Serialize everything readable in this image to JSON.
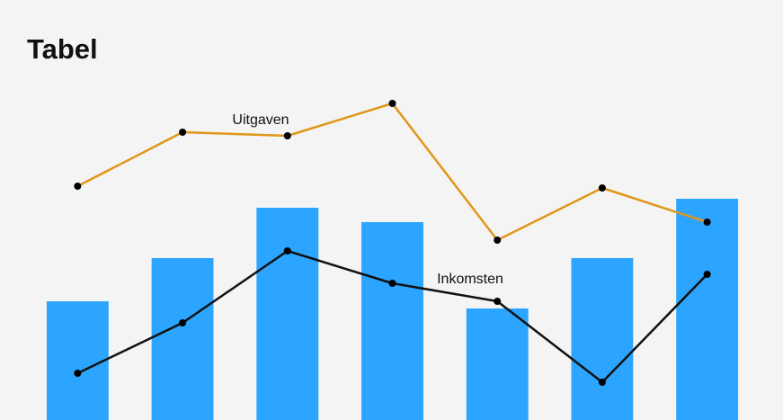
{
  "chart_data": {
    "type": "bar",
    "title": "Tabel",
    "categories": [
      null,
      null,
      null,
      null,
      null,
      null,
      null
    ],
    "values": [
      33,
      45,
      59,
      55,
      31,
      45,
      61.5
    ],
    "color": "#2ba5ff",
    "ylim": [
      0,
      100
    ],
    "series": [
      {
        "type": "line",
        "name": "Uitgaven",
        "color": "#e0961a",
        "values": [
          65,
          80,
          79,
          88,
          50,
          64.5,
          55
        ]
      },
      {
        "type": "line",
        "name": "Inkomsten",
        "color": "#111111",
        "values": [
          13,
          27,
          47,
          38,
          33,
          10.5,
          40.5
        ]
      }
    ]
  }
}
